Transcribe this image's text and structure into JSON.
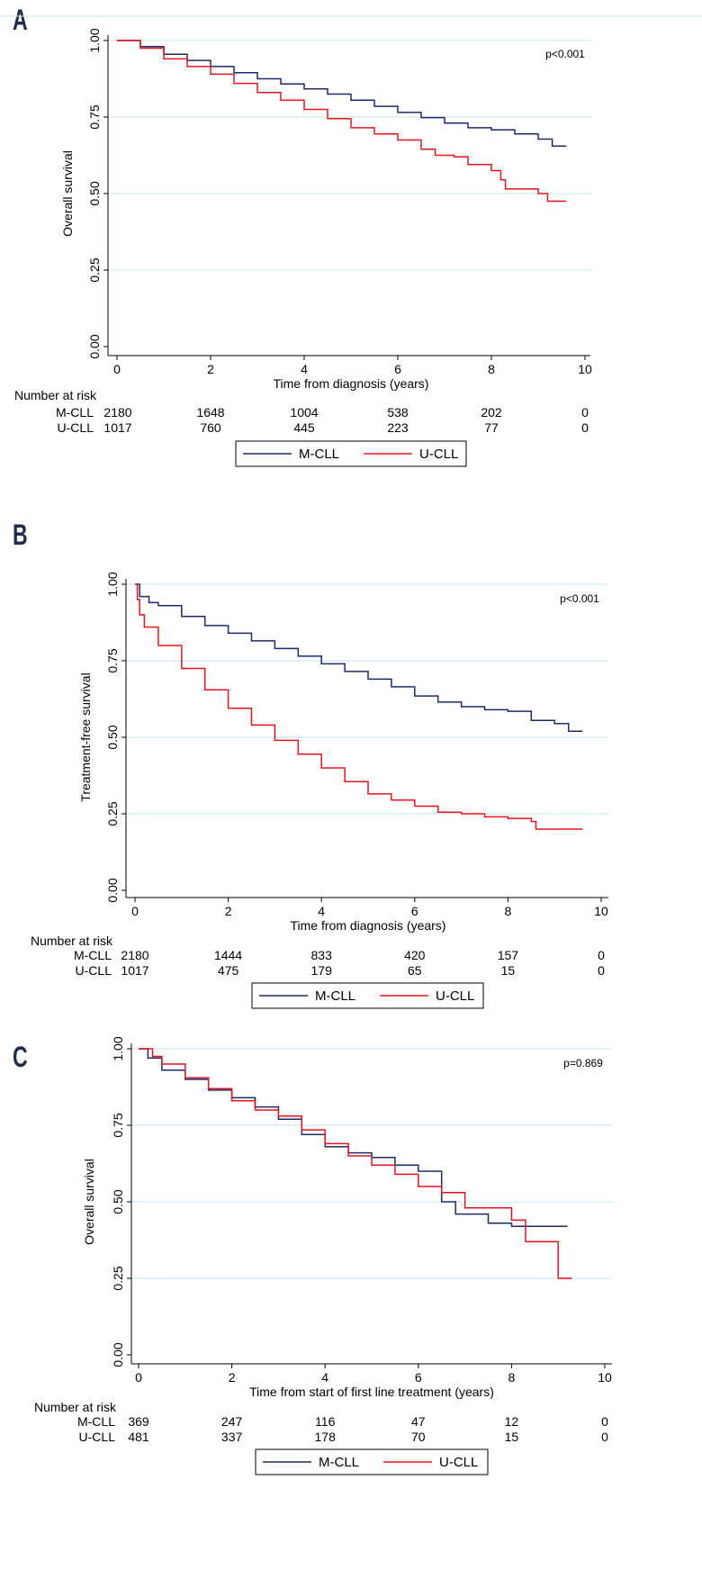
{
  "colors": {
    "m_cll": "#1a2a6c",
    "u_cll": "#e8141c",
    "grid": "#bfe6ef",
    "top_grid": "#c8ecd4"
  },
  "chart_data": [
    {
      "panel": "A",
      "type": "line",
      "step": true,
      "ylabel": "Overall survival",
      "xlabel": "Time from diagnosis (years)",
      "p_value": "p<0.001",
      "xlim": [
        0,
        10
      ],
      "ylim": [
        0,
        1
      ],
      "xticks": [
        0,
        2,
        4,
        6,
        8,
        10
      ],
      "yticks": [
        "0.00",
        "0.25",
        "0.50",
        "0.75",
        "1.00"
      ],
      "grid_color": "#c8ecd4",
      "series": [
        {
          "name": "M-CLL",
          "color": "#1a2a6c",
          "points": [
            [
              0,
              1.0
            ],
            [
              0.5,
              0.98
            ],
            [
              1,
              0.955
            ],
            [
              1.5,
              0.935
            ],
            [
              2,
              0.915
            ],
            [
              2.5,
              0.895
            ],
            [
              3,
              0.875
            ],
            [
              3.5,
              0.858
            ],
            [
              4,
              0.842
            ],
            [
              4.5,
              0.825
            ],
            [
              5,
              0.805
            ],
            [
              5.5,
              0.785
            ],
            [
              6,
              0.765
            ],
            [
              6.5,
              0.748
            ],
            [
              7,
              0.73
            ],
            [
              7.5,
              0.715
            ],
            [
              8,
              0.708
            ],
            [
              8.5,
              0.695
            ],
            [
              9,
              0.678
            ],
            [
              9.3,
              0.655
            ],
            [
              9.6,
              0.655
            ]
          ]
        },
        {
          "name": "U-CLL",
          "color": "#e8141c",
          "points": [
            [
              0,
              1.0
            ],
            [
              0.5,
              0.975
            ],
            [
              1,
              0.94
            ],
            [
              1.5,
              0.915
            ],
            [
              2,
              0.89
            ],
            [
              2.5,
              0.86
            ],
            [
              3,
              0.83
            ],
            [
              3.5,
              0.805
            ],
            [
              4,
              0.775
            ],
            [
              4.5,
              0.745
            ],
            [
              5,
              0.715
            ],
            [
              5.5,
              0.695
            ],
            [
              6,
              0.675
            ],
            [
              6.5,
              0.645
            ],
            [
              6.8,
              0.625
            ],
            [
              7.2,
              0.62
            ],
            [
              7.5,
              0.595
            ],
            [
              8,
              0.575
            ],
            [
              8.2,
              0.545
            ],
            [
              8.3,
              0.515
            ],
            [
              8.6,
              0.515
            ],
            [
              9,
              0.5
            ],
            [
              9.2,
              0.475
            ],
            [
              9.6,
              0.475
            ]
          ]
        }
      ],
      "risk": {
        "title": "Number at risk",
        "rows": [
          {
            "label": "M-CLL",
            "values": [
              "2180",
              "1648",
              "1004",
              "538",
              "202",
              "0"
            ]
          },
          {
            "label": "U-CLL",
            "values": [
              "1017",
              "760",
              "445",
              "223",
              "77",
              "0"
            ]
          }
        ]
      },
      "legend": [
        "M-CLL",
        "U-CLL"
      ]
    },
    {
      "panel": "B",
      "type": "line",
      "step": true,
      "ylabel": "Treatment-free survival",
      "xlabel": "Time from diagnosis (years)",
      "p_value": "p<0.001",
      "xlim": [
        0,
        10
      ],
      "ylim": [
        0,
        1
      ],
      "xticks": [
        0,
        2,
        4,
        6,
        8,
        10
      ],
      "yticks": [
        "0.00",
        "0.25",
        "0.50",
        "0.75",
        "1.00"
      ],
      "grid_color": "#bfe6ef",
      "series": [
        {
          "name": "M-CLL",
          "color": "#1a2a6c",
          "points": [
            [
              0,
              1.0
            ],
            [
              0.1,
              0.96
            ],
            [
              0.3,
              0.94
            ],
            [
              0.5,
              0.93
            ],
            [
              1,
              0.895
            ],
            [
              1.5,
              0.865
            ],
            [
              2,
              0.84
            ],
            [
              2.5,
              0.815
            ],
            [
              3,
              0.79
            ],
            [
              3.5,
              0.765
            ],
            [
              4,
              0.74
            ],
            [
              4.5,
              0.715
            ],
            [
              5,
              0.69
            ],
            [
              5.5,
              0.665
            ],
            [
              6,
              0.635
            ],
            [
              6.5,
              0.615
            ],
            [
              7,
              0.6
            ],
            [
              7.5,
              0.59
            ],
            [
              8,
              0.585
            ],
            [
              8.5,
              0.555
            ],
            [
              9,
              0.545
            ],
            [
              9.3,
              0.52
            ],
            [
              9.6,
              0.52
            ]
          ]
        },
        {
          "name": "U-CLL",
          "color": "#e8141c",
          "points": [
            [
              0,
              1.0
            ],
            [
              0.05,
              0.95
            ],
            [
              0.1,
              0.9
            ],
            [
              0.2,
              0.86
            ],
            [
              0.5,
              0.8
            ],
            [
              1,
              0.725
            ],
            [
              1.5,
              0.655
            ],
            [
              2,
              0.595
            ],
            [
              2.5,
              0.54
            ],
            [
              3,
              0.49
            ],
            [
              3.5,
              0.445
            ],
            [
              4,
              0.4
            ],
            [
              4.5,
              0.355
            ],
            [
              5,
              0.315
            ],
            [
              5.5,
              0.295
            ],
            [
              6,
              0.275
            ],
            [
              6.5,
              0.255
            ],
            [
              7,
              0.25
            ],
            [
              7.5,
              0.24
            ],
            [
              8,
              0.235
            ],
            [
              8.5,
              0.225
            ],
            [
              8.6,
              0.2
            ],
            [
              9.6,
              0.2
            ]
          ]
        }
      ],
      "risk": {
        "title": "Number at risk",
        "rows": [
          {
            "label": "M-CLL",
            "values": [
              "2180",
              "1444",
              "833",
              "420",
              "157",
              "0"
            ]
          },
          {
            "label": "U-CLL",
            "values": [
              "1017",
              "475",
              "179",
              "65",
              "15",
              "0"
            ]
          }
        ]
      },
      "legend": [
        "M-CLL",
        "U-CLL"
      ]
    },
    {
      "panel": "C",
      "type": "line",
      "step": true,
      "ylabel": "Overall survival",
      "xlabel": "Time from start of first line treatment (years)",
      "p_value": "p=0.869",
      "xlim": [
        0,
        10
      ],
      "ylim": [
        0,
        1
      ],
      "xticks": [
        0,
        2,
        4,
        6,
        8,
        10
      ],
      "yticks": [
        "0.00",
        "0.25",
        "0.50",
        "0.75",
        "1.00"
      ],
      "grid_color": "#bfe6ef",
      "series": [
        {
          "name": "M-CLL",
          "color": "#1a2a6c",
          "points": [
            [
              0,
              1.0
            ],
            [
              0.2,
              0.97
            ],
            [
              0.5,
              0.93
            ],
            [
              1,
              0.9
            ],
            [
              1.5,
              0.865
            ],
            [
              2,
              0.84
            ],
            [
              2.5,
              0.81
            ],
            [
              3,
              0.77
            ],
            [
              3.5,
              0.72
            ],
            [
              4,
              0.68
            ],
            [
              4.5,
              0.66
            ],
            [
              5,
              0.645
            ],
            [
              5.5,
              0.62
            ],
            [
              6,
              0.6
            ],
            [
              6.5,
              0.5
            ],
            [
              6.8,
              0.46
            ],
            [
              7.2,
              0.46
            ],
            [
              7.5,
              0.43
            ],
            [
              8,
              0.42
            ],
            [
              9.2,
              0.42
            ]
          ]
        },
        {
          "name": "U-CLL",
          "color": "#e8141c",
          "points": [
            [
              0,
              1.0
            ],
            [
              0.3,
              0.975
            ],
            [
              0.5,
              0.95
            ],
            [
              1,
              0.905
            ],
            [
              1.5,
              0.87
            ],
            [
              2,
              0.83
            ],
            [
              2.5,
              0.8
            ],
            [
              3,
              0.78
            ],
            [
              3.5,
              0.735
            ],
            [
              4,
              0.69
            ],
            [
              4.5,
              0.65
            ],
            [
              5,
              0.62
            ],
            [
              5.5,
              0.59
            ],
            [
              6,
              0.55
            ],
            [
              6.5,
              0.53
            ],
            [
              7,
              0.48
            ],
            [
              7.5,
              0.48
            ],
            [
              8,
              0.44
            ],
            [
              8.3,
              0.37
            ],
            [
              9,
              0.37
            ],
            [
              9,
              0.25
            ],
            [
              9.3,
              0.25
            ]
          ]
        }
      ],
      "risk": {
        "title": "Number at risk",
        "rows": [
          {
            "label": "M-CLL",
            "values": [
              "369",
              "247",
              "116",
              "47",
              "12",
              "0"
            ]
          },
          {
            "label": "U-CLL",
            "values": [
              "481",
              "337",
              "178",
              "70",
              "15",
              "0"
            ]
          }
        ]
      },
      "legend": [
        "M-CLL",
        "U-CLL"
      ]
    }
  ]
}
